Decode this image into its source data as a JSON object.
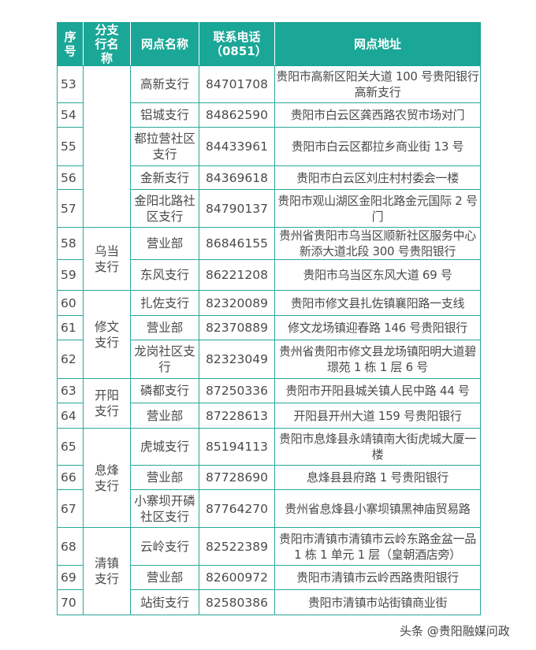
{
  "headers": {
    "seq": "序号",
    "branch": "分支行名称",
    "name": "网点名称",
    "phone": "联系电话（0851）",
    "address": "网点地址"
  },
  "branches": [
    {
      "label": "",
      "rows": 5
    },
    {
      "label": "乌当支行",
      "rows": 2
    },
    {
      "label": "修文支行",
      "rows": 3
    },
    {
      "label": "开阳支行",
      "rows": 2
    },
    {
      "label": "息烽支行",
      "rows": 3
    },
    {
      "label": "清镇支行",
      "rows": 3
    }
  ],
  "rows": [
    {
      "seq": "53",
      "name": "高新支行",
      "phone": "84701708",
      "address": "贵阳市高新区阳关大道 100 号贵阳银行高新支行"
    },
    {
      "seq": "54",
      "name": "铝城支行",
      "phone": "84862590",
      "address": "贵阳市白云区龚西路农贸市场对门"
    },
    {
      "seq": "55",
      "name": "都拉营社区支行",
      "phone": "84433961",
      "address": "贵阳市白云区都拉乡商业街 13 号"
    },
    {
      "seq": "56",
      "name": "金新支行",
      "phone": "84369618",
      "address": "贵阳市白云区刘庄村村委会一楼"
    },
    {
      "seq": "57",
      "name": "金阳北路社区支行",
      "phone": "84790137",
      "address": "贵阳市观山湖区金阳北路金元国际 2 号门"
    },
    {
      "seq": "58",
      "name": "营业部",
      "phone": "86846155",
      "address": "贵州省贵阳市乌当区顺新社区服务中心新添大道北段 300 号贵阳银行"
    },
    {
      "seq": "59",
      "name": "东风支行",
      "phone": "86221208",
      "address": "贵阳市乌当区东风大道 69 号"
    },
    {
      "seq": "60",
      "name": "扎佐支行",
      "phone": "82320089",
      "address": "贵阳市修文县扎佐镇襄阳路一支线"
    },
    {
      "seq": "61",
      "name": "营业部",
      "phone": "82370889",
      "address": "修文龙场镇迎春路 146 号贵阳银行"
    },
    {
      "seq": "62",
      "name": "龙岗社区支行",
      "phone": "82323049",
      "address": "贵州省贵阳市修文县龙场镇阳明大道碧璟苑 1 栋 1 层 6 号"
    },
    {
      "seq": "63",
      "name": "磷都支行",
      "phone": "87250336",
      "address": "贵阳市开阳县城关镇人民中路 44 号"
    },
    {
      "seq": "64",
      "name": "营业部",
      "phone": "87228613",
      "address": "开阳县开州大道 159 号贵阳银行"
    },
    {
      "seq": "65",
      "name": "虎城支行",
      "phone": "85194113",
      "address": "贵阳市息烽县永靖镇南大街虎城大厦一楼"
    },
    {
      "seq": "66",
      "name": "营业部",
      "phone": "87728690",
      "address": "息烽县县府路 1 号贵阳银行"
    },
    {
      "seq": "67",
      "name": "小寨坝开磷社区支行",
      "phone": "87764270",
      "address": "贵州省息烽县小寨坝镇黑神庙贸易路"
    },
    {
      "seq": "68",
      "name": "云岭支行",
      "phone": "82522389",
      "address": "贵阳市清镇市清镇市云岭东路金盆一品 1 栋 1 单元 1 层（皇朝酒店旁）"
    },
    {
      "seq": "69",
      "name": "营业部",
      "phone": "82600972",
      "address": "贵阳市清镇市云岭西路贵阳银行"
    },
    {
      "seq": "70",
      "name": "站街支行",
      "phone": "82580386",
      "address": "贵阳市清镇市站街镇商业街"
    }
  ],
  "watermark": "头条 @贵阳融媒问政",
  "colors": {
    "header_bg": "#1ba797",
    "border": "#2aa898"
  }
}
